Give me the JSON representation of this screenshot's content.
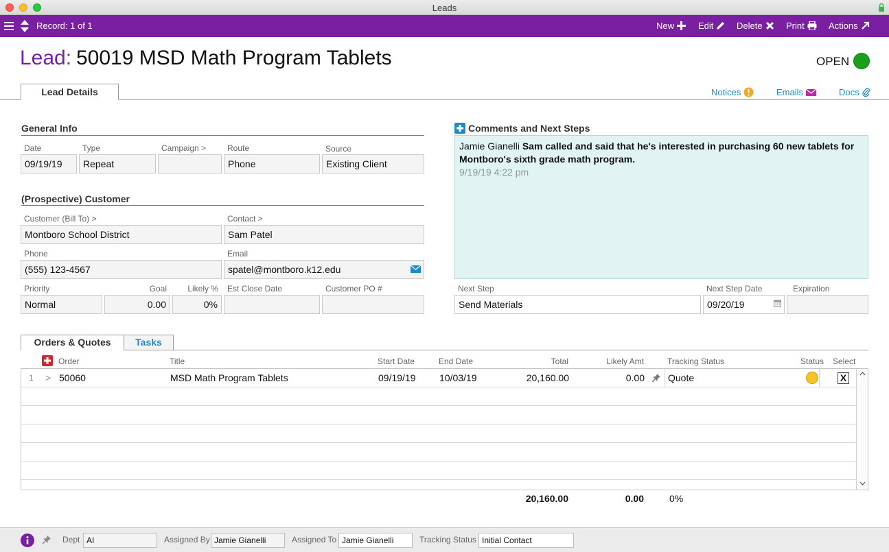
{
  "window": {
    "title": "Leads"
  },
  "toolbar": {
    "record_label": "Record: 1 of 1",
    "new_label": "New",
    "edit_label": "Edit",
    "delete_label": "Delete",
    "print_label": "Print",
    "actions_label": "Actions"
  },
  "header": {
    "lead_prefix": "Lead:",
    "lead_title": "50019 MSD Math Program Tablets",
    "status_text": "OPEN",
    "status_color": "#1aa01a"
  },
  "tabs": {
    "lead_details": "Lead Details"
  },
  "top_links": {
    "notices": "Notices",
    "emails": "Emails",
    "docs": "Docs"
  },
  "general_info": {
    "heading": "General Info",
    "date_label": "Date",
    "date_value": "09/19/19",
    "type_label": "Type",
    "type_value": "Repeat",
    "campaign_label": "Campaign >",
    "campaign_value": "",
    "route_label": "Route",
    "route_value": "Phone",
    "source_label": "Source",
    "source_value": "Existing Client"
  },
  "customer": {
    "heading": "(Prospective) Customer",
    "customer_label": "Customer (Bill To) >",
    "customer_value": "Montboro School District",
    "contact_label": "Contact >",
    "contact_value": "Sam Patel",
    "phone_label": "Phone",
    "phone_value": "(555) 123-4567",
    "email_label": "Email",
    "email_value": "spatel@montboro.k12.edu",
    "priority_label": "Priority",
    "priority_value": "Normal",
    "goal_label": "Goal",
    "goal_value": "0.00",
    "likely_label": "Likely %",
    "likely_value": "0%",
    "est_close_label": "Est Close Date",
    "est_close_value": "",
    "po_label": "Customer PO #",
    "po_value": ""
  },
  "comments": {
    "heading": "Comments and Next Steps",
    "author": "Jamie Gianelli",
    "text": "Sam called and said that he's interested in purchasing 60 new tablets for Montboro's sixth grade math program.",
    "timestamp": "9/19/19  4:22 pm",
    "next_step_label": "Next Step",
    "next_step_value": "Send Materials",
    "next_step_date_label": "Next Step Date",
    "next_step_date_value": "09/20/19",
    "expiration_label": "Expiration",
    "expiration_value": ""
  },
  "orders": {
    "tab_orders": "Orders & Quotes",
    "tab_tasks": "Tasks",
    "columns": {
      "order": "Order",
      "title": "Title",
      "start": "Start Date",
      "end": "End Date",
      "total": "Total",
      "likely": "Likely Amt",
      "tracking": "Tracking Status",
      "status": "Status",
      "select": "Select"
    },
    "rows": [
      {
        "num": "1",
        "arrow": ">",
        "order": "50060",
        "title": "MSD Math Program Tablets",
        "start": "09/19/19",
        "end": "10/03/19",
        "total": "20,160.00",
        "likely": "0.00",
        "tracking": "Quote",
        "status_color": "#f7c325",
        "select": "X"
      }
    ],
    "totals": {
      "total": "20,160.00",
      "likely": "0.00",
      "pct": "0%"
    }
  },
  "bottom": {
    "dept_label": "Dept",
    "dept_value": "AI",
    "assigned_by_label": "Assigned By",
    "assigned_by_value": "Jamie Gianelli",
    "assigned_to_label": "Assigned To",
    "assigned_to_value": "Jamie Gianelli",
    "tracking_label": "Tracking Status",
    "tracking_value": "Initial Contact"
  }
}
